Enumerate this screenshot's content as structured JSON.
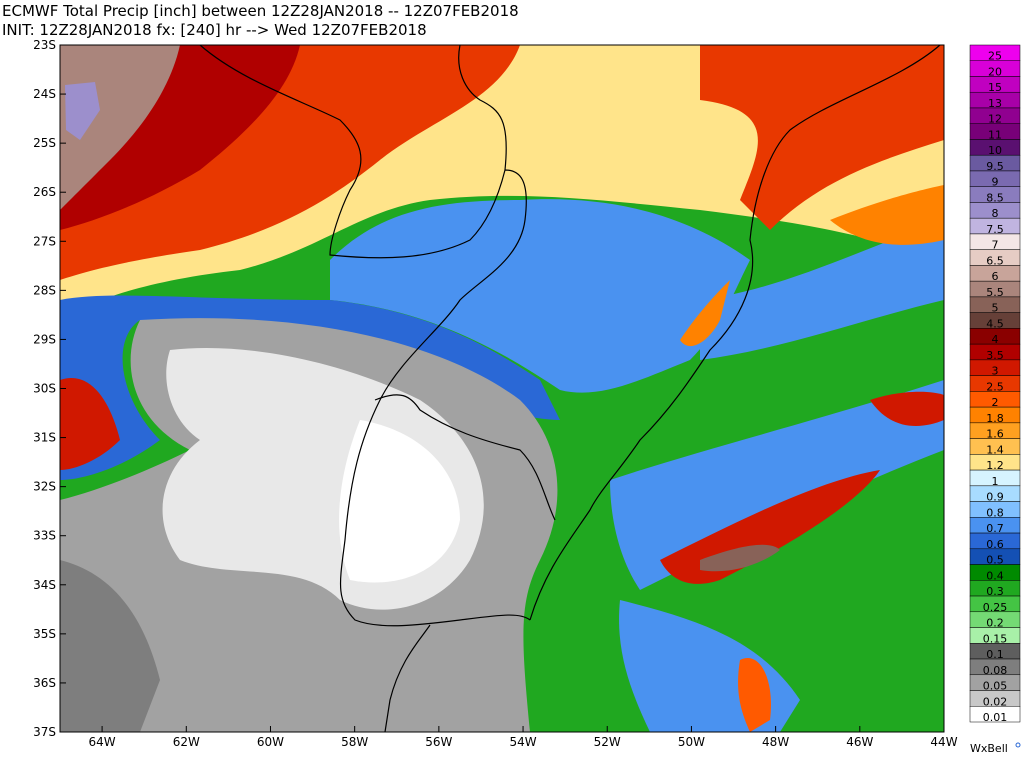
{
  "header": {
    "title": "ECMWF Total Precip [inch] between 12Z28JAN2018 -- 12Z07FEB2018",
    "subtitle": "INIT: 12Z28JAN2018 fx: [240] hr --> Wed 12Z07FEB2018"
  },
  "map": {
    "lat_labels": [
      "23S",
      "24S",
      "25S",
      "26S",
      "27S",
      "28S",
      "29S",
      "30S",
      "31S",
      "32S",
      "33S",
      "34S",
      "35S",
      "36S",
      "37S"
    ],
    "lon_labels": [
      "64W",
      "62W",
      "60W",
      "58W",
      "56W",
      "54W",
      "52W",
      "50W",
      "48W",
      "46W",
      "44W"
    ]
  },
  "legend": {
    "items": [
      {
        "label": "25",
        "color": "#ee00ee"
      },
      {
        "label": "20",
        "color": "#d800d8"
      },
      {
        "label": "15",
        "color": "#c000c0"
      },
      {
        "label": "13",
        "color": "#a800a8"
      },
      {
        "label": "12",
        "color": "#900090"
      },
      {
        "label": "11",
        "color": "#780078"
      },
      {
        "label": "10",
        "color": "#5a1070"
      },
      {
        "label": "9.5",
        "color": "#6a5aa0"
      },
      {
        "label": "9",
        "color": "#7a6ab0"
      },
      {
        "label": "8.5",
        "color": "#8a7cbe"
      },
      {
        "label": "8",
        "color": "#9c8fcc"
      },
      {
        "label": "7.5",
        "color": "#c0b4e0"
      },
      {
        "label": "7",
        "color": "#f4e6e6"
      },
      {
        "label": "6.5",
        "color": "#e6ccc4"
      },
      {
        "label": "6",
        "color": "#c8a49a"
      },
      {
        "label": "5.5",
        "color": "#aa857c"
      },
      {
        "label": "5",
        "color": "#886258"
      },
      {
        "label": "4.5",
        "color": "#664038"
      },
      {
        "label": "4",
        "color": "#8a0000"
      },
      {
        "label": "3.5",
        "color": "#b00000"
      },
      {
        "label": "3",
        "color": "#d01800"
      },
      {
        "label": "2.5",
        "color": "#e83800"
      },
      {
        "label": "2",
        "color": "#ff5a00"
      },
      {
        "label": "1.8",
        "color": "#ff8200"
      },
      {
        "label": "1.6",
        "color": "#ffa020"
      },
      {
        "label": "1.4",
        "color": "#ffc050"
      },
      {
        "label": "1.2",
        "color": "#ffe48a"
      },
      {
        "label": "1",
        "color": "#d6f4ff"
      },
      {
        "label": "0.9",
        "color": "#a8dcff"
      },
      {
        "label": "0.8",
        "color": "#80c0ff"
      },
      {
        "label": "0.7",
        "color": "#4a92f0"
      },
      {
        "label": "0.6",
        "color": "#2a68d6"
      },
      {
        "label": "0.5",
        "color": "#1450b4"
      },
      {
        "label": "0.4",
        "color": "#008a00"
      },
      {
        "label": "0.3",
        "color": "#20a820"
      },
      {
        "label": "0.25",
        "color": "#44c444"
      },
      {
        "label": "0.2",
        "color": "#74da74"
      },
      {
        "label": "0.15",
        "color": "#a8f0a8"
      },
      {
        "label": "0.1",
        "color": "#5e5e5e"
      },
      {
        "label": "0.08",
        "color": "#7e7e7e"
      },
      {
        "label": "0.05",
        "color": "#a2a2a2"
      },
      {
        "label": "0.02",
        "color": "#c8c8c8"
      },
      {
        "label": "0.01",
        "color": "#ffffff"
      }
    ]
  },
  "footer": {
    "brand": "WxBell"
  }
}
